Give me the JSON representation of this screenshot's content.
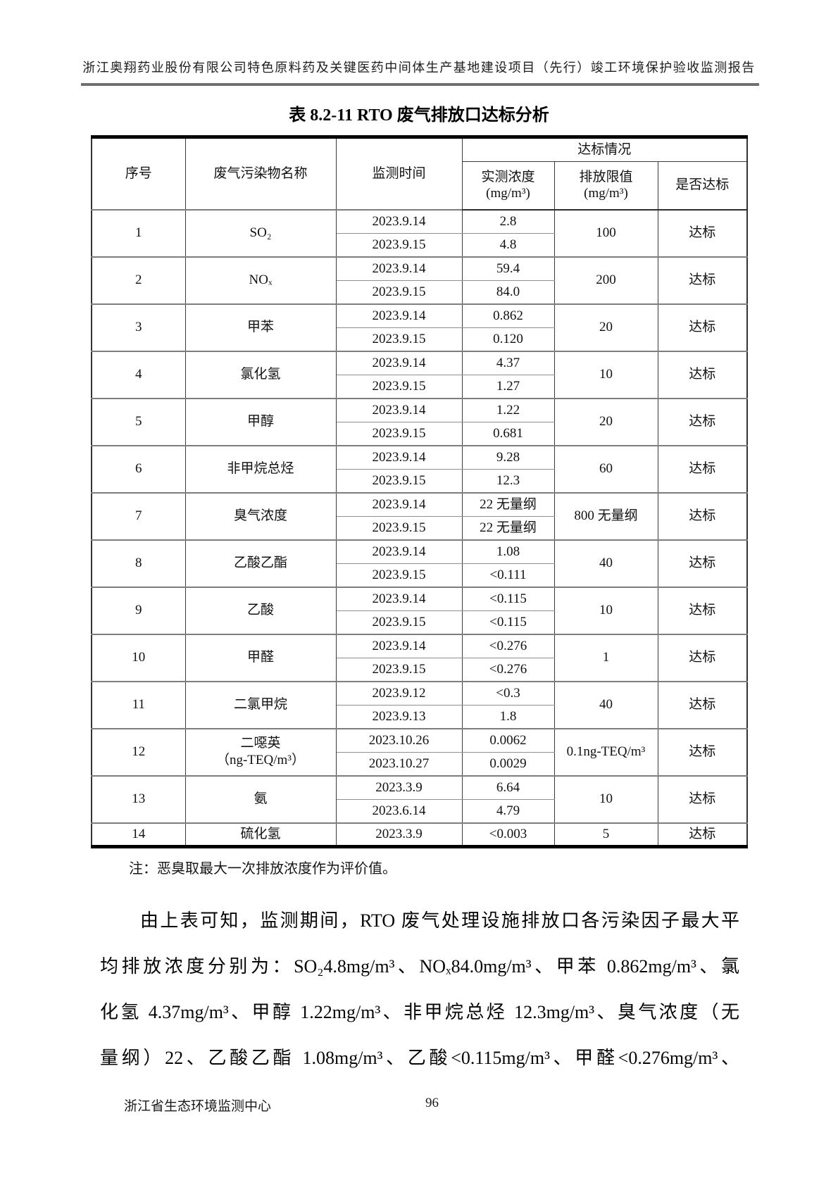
{
  "header": {
    "text": "浙江奥翔药业股份有限公司特色原料药及关键医药中间体生产基地建设项目（先行）竣工环境保护验收监测报告"
  },
  "table": {
    "title": "表 8.2-11 RTO 废气排放口达标分析",
    "columns": {
      "no": "序号",
      "pollutant": "废气污染物名称",
      "date": "监测时间",
      "compliance_group": "达标情况",
      "measured": "实测浓度",
      "measured_unit": "(mg/m³)",
      "limit": "排放限值",
      "limit_unit": "(mg/m³)",
      "compliant": "是否达标"
    },
    "rows": [
      {
        "no": "1",
        "pollutant": "SO₂",
        "entries": [
          {
            "date": "2023.9.14",
            "value": "2.8"
          },
          {
            "date": "2023.9.15",
            "value": "4.8"
          }
        ],
        "limit": "100",
        "compliant": "达标"
      },
      {
        "no": "2",
        "pollutant": "NOₓ",
        "entries": [
          {
            "date": "2023.9.14",
            "value": "59.4"
          },
          {
            "date": "2023.9.15",
            "value": "84.0"
          }
        ],
        "limit": "200",
        "compliant": "达标"
      },
      {
        "no": "3",
        "pollutant": "甲苯",
        "entries": [
          {
            "date": "2023.9.14",
            "value": "0.862"
          },
          {
            "date": "2023.9.15",
            "value": "0.120"
          }
        ],
        "limit": "20",
        "compliant": "达标"
      },
      {
        "no": "4",
        "pollutant": "氯化氢",
        "entries": [
          {
            "date": "2023.9.14",
            "value": "4.37"
          },
          {
            "date": "2023.9.15",
            "value": "1.27"
          }
        ],
        "limit": "10",
        "compliant": "达标"
      },
      {
        "no": "5",
        "pollutant": "甲醇",
        "entries": [
          {
            "date": "2023.9.14",
            "value": "1.22"
          },
          {
            "date": "2023.9.15",
            "value": "0.681"
          }
        ],
        "limit": "20",
        "compliant": "达标"
      },
      {
        "no": "6",
        "pollutant": "非甲烷总烃",
        "entries": [
          {
            "date": "2023.9.14",
            "value": "9.28"
          },
          {
            "date": "2023.9.15",
            "value": "12.3"
          }
        ],
        "limit": "60",
        "compliant": "达标"
      },
      {
        "no": "7",
        "pollutant": "臭气浓度",
        "entries": [
          {
            "date": "2023.9.14",
            "value": "22 无量纲"
          },
          {
            "date": "2023.9.15",
            "value": "22 无量纲"
          }
        ],
        "limit": "800 无量纲",
        "compliant": "达标"
      },
      {
        "no": "8",
        "pollutant": "乙酸乙酯",
        "entries": [
          {
            "date": "2023.9.14",
            "value": "1.08"
          },
          {
            "date": "2023.9.15",
            "value": "<0.111"
          }
        ],
        "limit": "40",
        "compliant": "达标"
      },
      {
        "no": "9",
        "pollutant": "乙酸",
        "entries": [
          {
            "date": "2023.9.14",
            "value": "<0.115"
          },
          {
            "date": "2023.9.15",
            "value": "<0.115"
          }
        ],
        "limit": "10",
        "compliant": "达标"
      },
      {
        "no": "10",
        "pollutant": "甲醛",
        "entries": [
          {
            "date": "2023.9.14",
            "value": "<0.276"
          },
          {
            "date": "2023.9.15",
            "value": "<0.276"
          }
        ],
        "limit": "1",
        "compliant": "达标"
      },
      {
        "no": "11",
        "pollutant": "二氯甲烷",
        "entries": [
          {
            "date": "2023.9.12",
            "value": "<0.3"
          },
          {
            "date": "2023.9.13",
            "value": "1.8"
          }
        ],
        "limit": "40",
        "compliant": "达标"
      },
      {
        "no": "12",
        "pollutant": "二噁英",
        "pollutant_line2": "（ng-TEQ/m³）",
        "entries": [
          {
            "date": "2023.10.26",
            "value": "0.0062"
          },
          {
            "date": "2023.10.27",
            "value": "0.0029"
          }
        ],
        "limit": "0.1ng-TEQ/m³",
        "compliant": "达标"
      },
      {
        "no": "13",
        "pollutant": "氨",
        "entries": [
          {
            "date": "2023.3.9",
            "value": "6.64"
          },
          {
            "date": "2023.6.14",
            "value": "4.79"
          }
        ],
        "limit": "10",
        "compliant": "达标"
      },
      {
        "no": "14",
        "pollutant": "硫化氢",
        "entries": [
          {
            "date": "2023.3.9",
            "value": "<0.003"
          }
        ],
        "limit": "5",
        "compliant": "达标"
      }
    ]
  },
  "note": "注：恶臭取最大一次排放浓度作为评价值。",
  "paragraph": {
    "lines": [
      "由上表可知，监测期间，RTO 废气处理设施排放口各污染因子最大平",
      "均排放浓度分别为：SO₂4.8mg/m³、NOₓ84.0mg/m³、甲苯 0.862mg/m³、氯",
      "化氢 4.37mg/m³、甲醇 1.22mg/m³、非甲烷总烃 12.3mg/m³、臭气浓度（无",
      "量纲）22、乙酸乙酯 1.08mg/m³、乙酸<0.115mg/m³、甲醛<0.276mg/m³、"
    ]
  },
  "footer": {
    "organization": "浙江省生态环境监测中心",
    "page_number": "96"
  }
}
